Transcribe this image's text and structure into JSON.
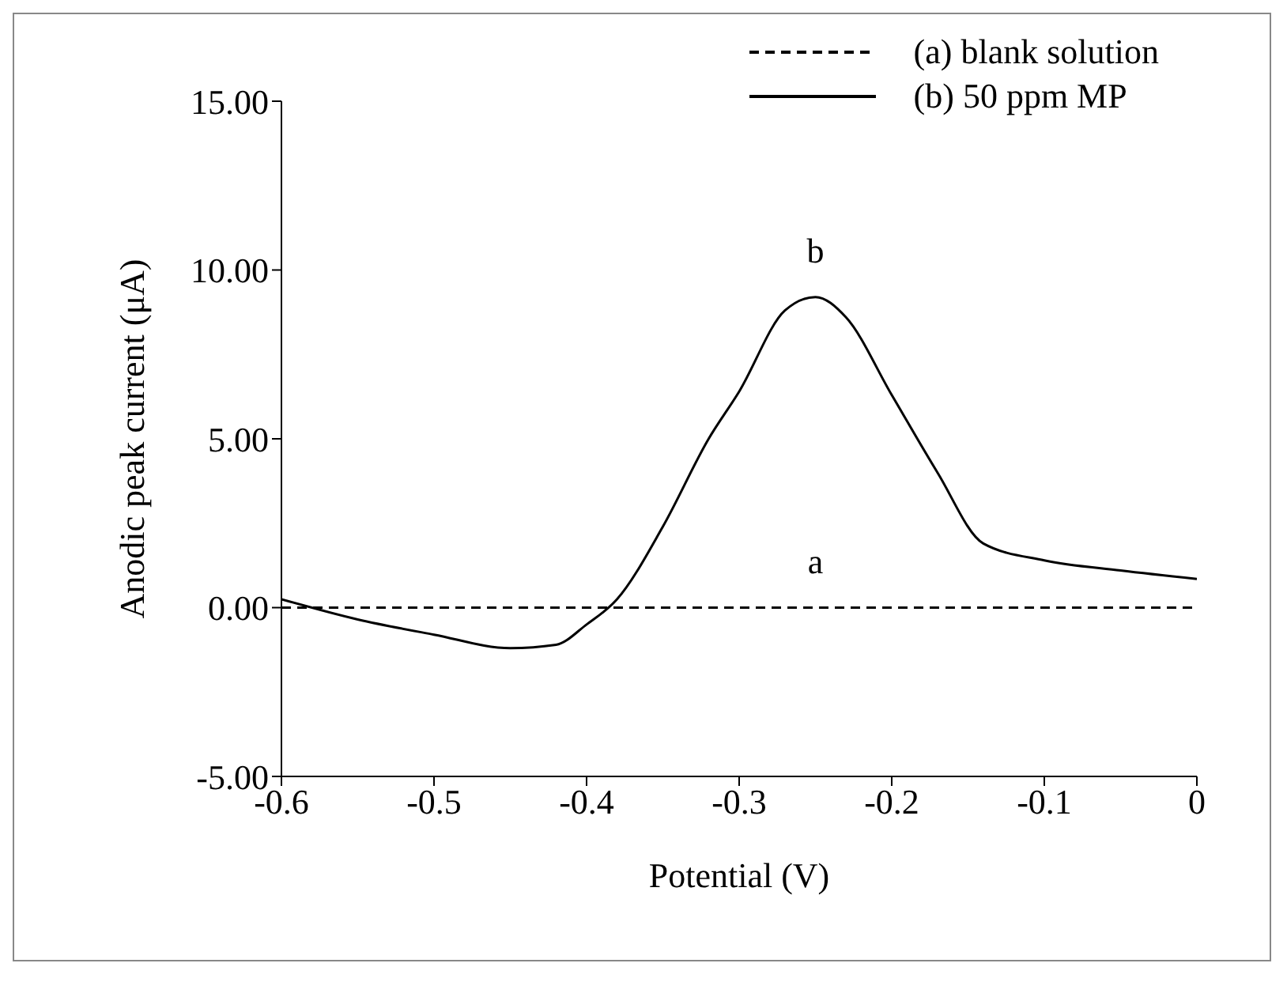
{
  "chart_data": {
    "type": "line",
    "xlabel": "Potential (V)",
    "ylabel": "Anodic peak current (μA)",
    "xlim": [
      -0.6,
      0
    ],
    "xticks": [
      -0.6,
      -0.5,
      -0.4,
      -0.3,
      -0.2,
      -0.1,
      0
    ],
    "ylim": [
      -5,
      15
    ],
    "yticks": [
      {
        "value": -5,
        "label": "-5.00"
      },
      {
        "value": 0,
        "label": "0.00"
      },
      {
        "value": 5,
        "label": "5.00"
      },
      {
        "value": 10,
        "label": "10.00"
      },
      {
        "value": 15,
        "label": "15.00"
      }
    ],
    "series": [
      {
        "name": "(a) blank solution",
        "color": "#000000",
        "line_style": "dashed",
        "x": [
          -0.6,
          0
        ],
        "values": [
          0,
          0
        ]
      },
      {
        "name": "(b) 50 ppm MP",
        "color": "#000000",
        "line_style": "solid",
        "x": [
          -0.6,
          -0.55,
          -0.5,
          -0.45,
          -0.42,
          -0.4,
          -0.38,
          -0.35,
          -0.32,
          -0.3,
          -0.27,
          -0.25,
          -0.23,
          -0.2,
          -0.17,
          -0.14,
          -0.1,
          -0.05,
          0
        ],
        "values": [
          0.25,
          -0.35,
          -0.8,
          -1.2,
          -1.1,
          -0.5,
          0.25,
          2.4,
          5.0,
          6.4,
          8.8,
          9.2,
          8.6,
          6.3,
          4.0,
          1.9,
          1.4,
          1.1,
          0.85
        ]
      }
    ],
    "annotations": [
      "a",
      "b"
    ],
    "legend": "top right",
    "grid": false,
    "marker": "none"
  }
}
